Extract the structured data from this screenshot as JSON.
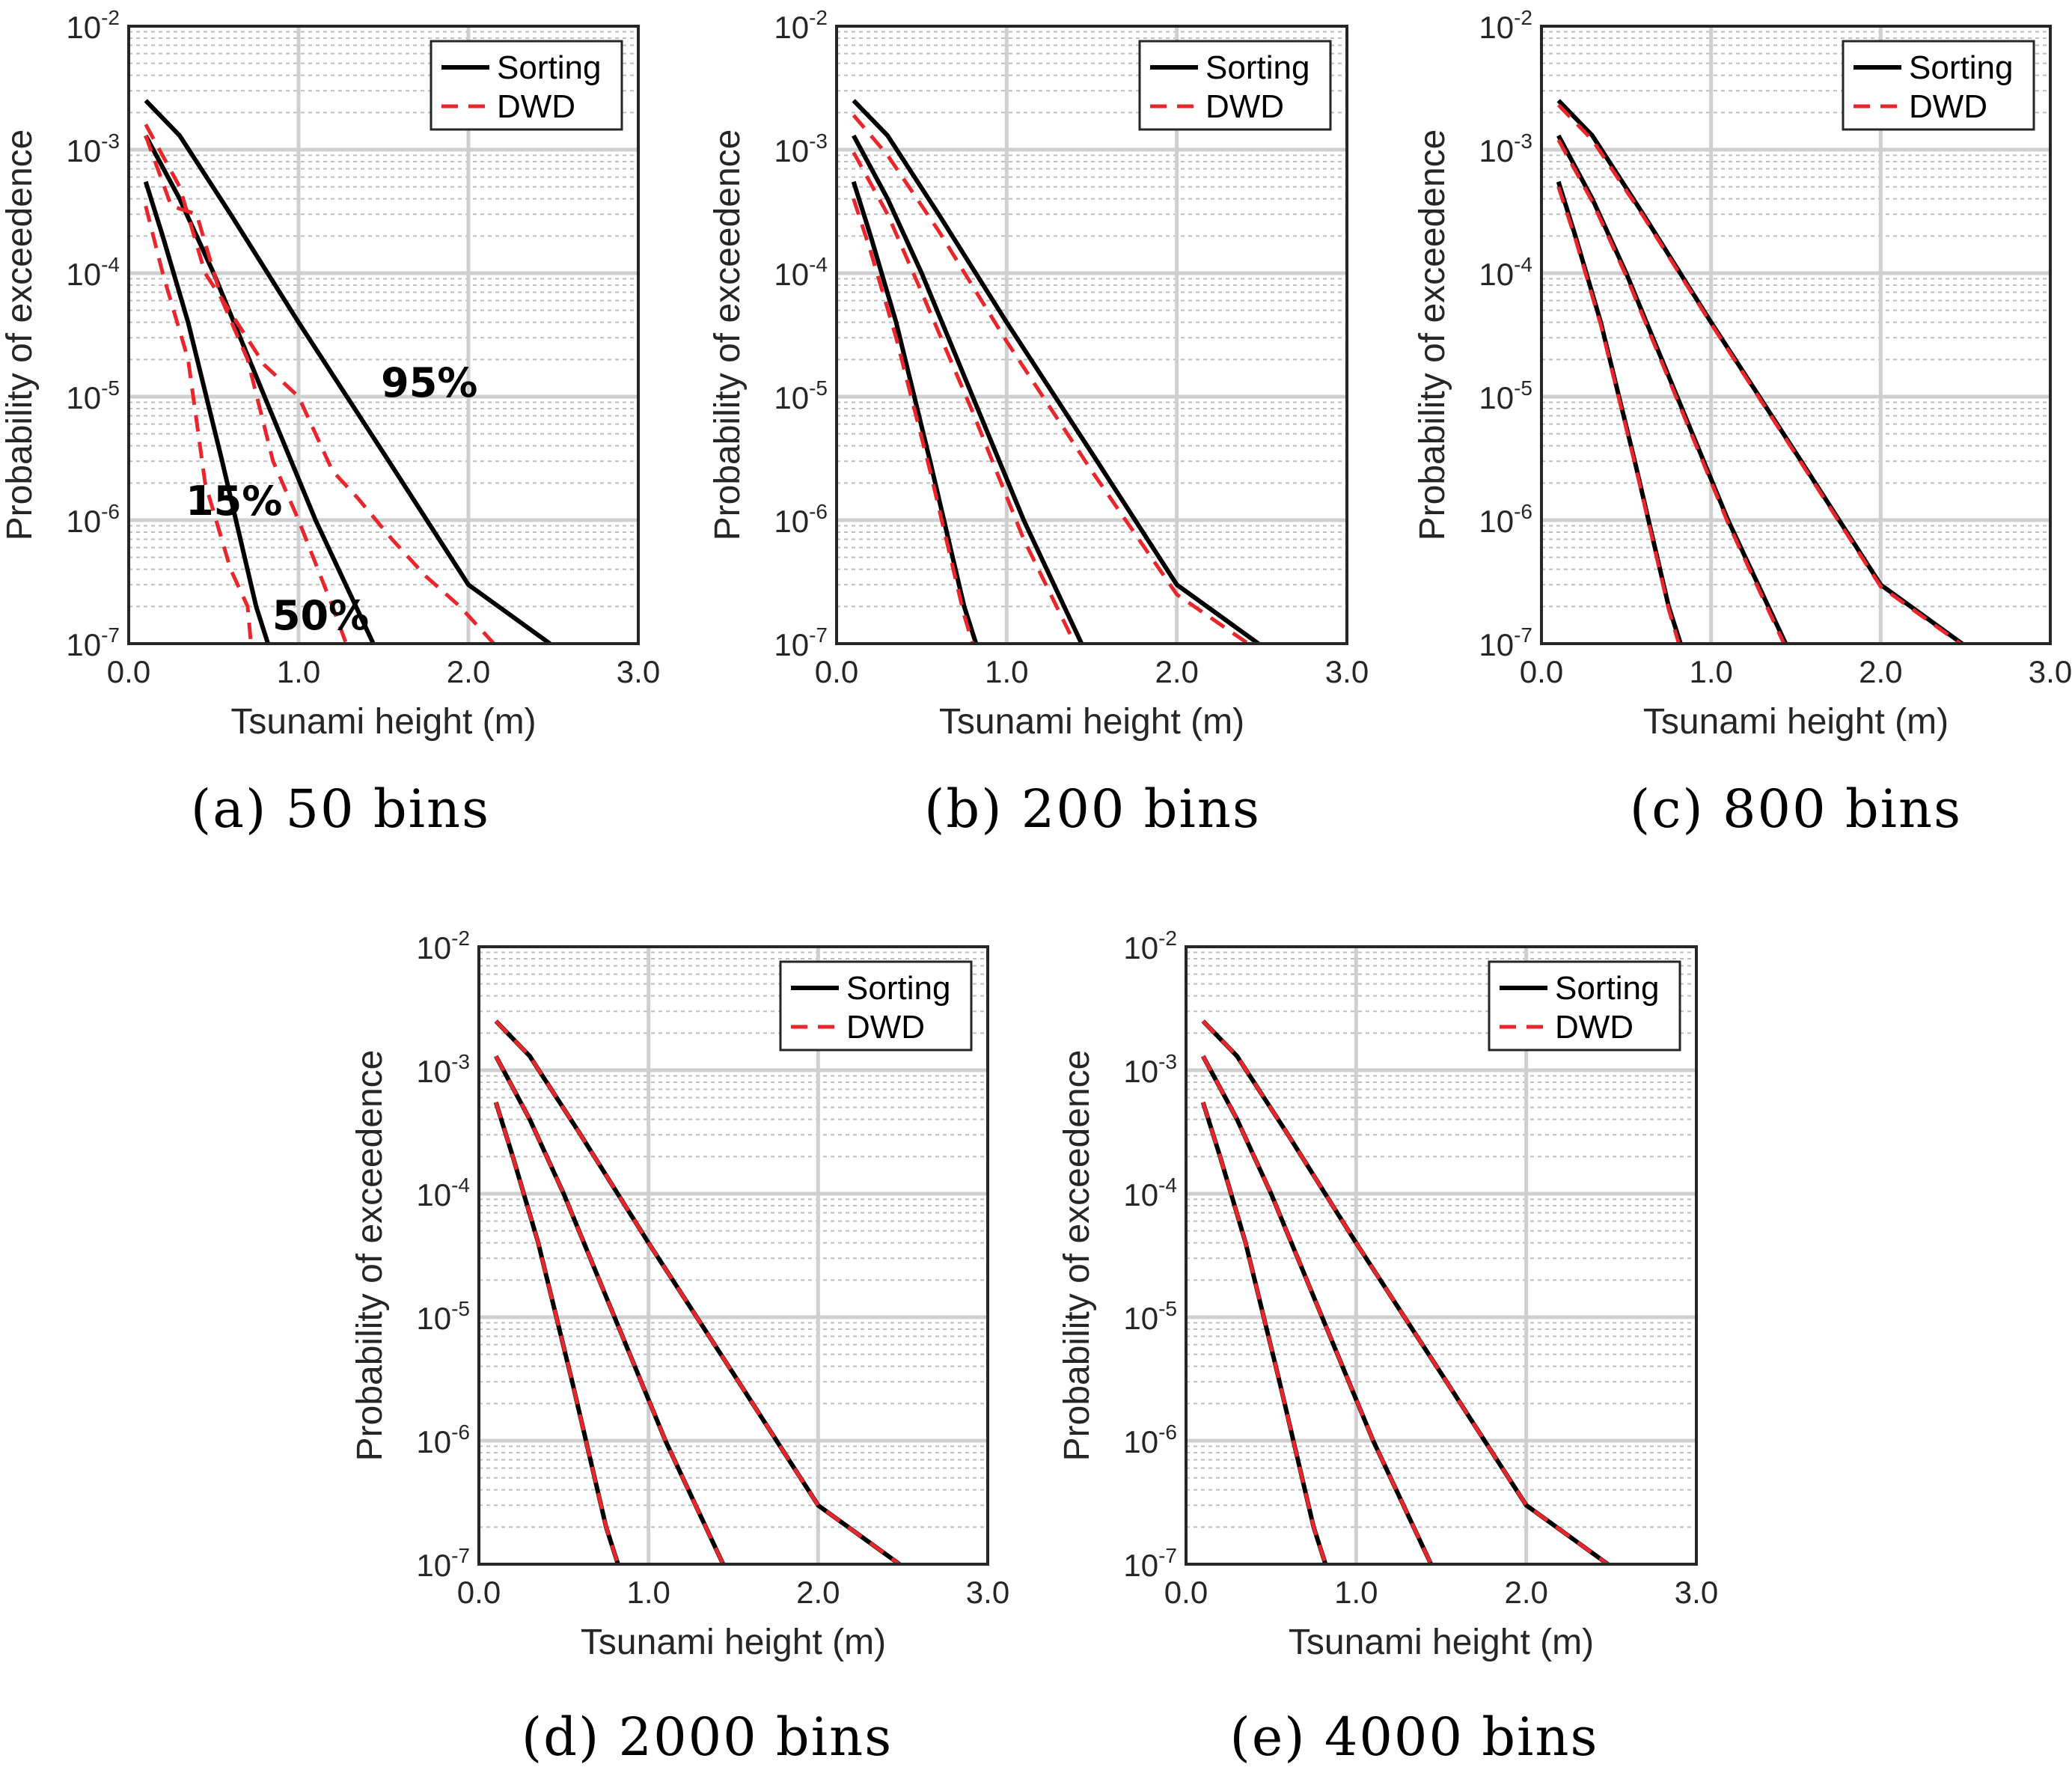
{
  "figure": {
    "type": "multi-panel line chart"
  },
  "chart_data": [
    {
      "type": "line",
      "caption": "(a) 50 bins",
      "xlabel": "Tsunami height (m)",
      "ylabel": "Probability of exceedence",
      "xlim": [
        0,
        3.0
      ],
      "ylim": [
        1e-07,
        0.01
      ],
      "yscale": "log",
      "xticks": [
        "0.0",
        "1.0",
        "2.0",
        "3.0"
      ],
      "yticks": [
        {
          "base": "10",
          "exp": "-2"
        },
        {
          "base": "10",
          "exp": "-3"
        },
        {
          "base": "10",
          "exp": "-4"
        },
        {
          "base": "10",
          "exp": "-5"
        },
        {
          "base": "10",
          "exp": "-6"
        },
        {
          "base": "10",
          "exp": "-7"
        }
      ],
      "legend": {
        "position": "top-right",
        "entries": [
          "Sorting",
          "DWD"
        ]
      },
      "annotations": [
        {
          "text": "95%",
          "x": 1.77,
          "y": 1e-05
        },
        {
          "text": "15%",
          "x": 0.62,
          "y": 1.1e-06
        },
        {
          "text": "50%",
          "x": 1.13,
          "y": 1.3e-07
        }
      ],
      "series": [
        {
          "name": "Sorting",
          "level": "95%",
          "x": [
            0.1,
            0.3,
            0.6,
            1.0,
            1.5,
            2.0,
            2.48
          ],
          "y": [
            0.0025,
            0.0013,
            0.0003,
            4e-05,
            3.5e-06,
            3e-07,
            1e-07
          ]
        },
        {
          "name": "Sorting",
          "level": "50%",
          "x": [
            0.1,
            0.3,
            0.5,
            0.8,
            1.1,
            1.44
          ],
          "y": [
            0.0013,
            0.0004,
            0.0001,
            1e-05,
            1e-06,
            1e-07
          ]
        },
        {
          "name": "Sorting",
          "level": "15%",
          "x": [
            0.1,
            0.2,
            0.35,
            0.55,
            0.75,
            0.82
          ],
          "y": [
            0.00055,
            0.0002,
            4e-05,
            3e-06,
            2e-07,
            1e-07
          ]
        },
        {
          "name": "DWD",
          "level": "95%",
          "x": [
            0.1,
            0.3,
            0.45,
            0.8,
            1.0,
            1.2,
            1.35,
            1.55,
            1.75,
            1.95,
            2.15
          ],
          "y": [
            0.0016,
            0.0005,
            0.0001,
            1.8e-05,
            1e-05,
            2.5e-06,
            1.5e-06,
            7e-07,
            3.5e-07,
            2e-07,
            1e-07
          ]
        },
        {
          "name": "DWD",
          "level": "50%",
          "x": [
            0.1,
            0.25,
            0.4,
            0.55,
            0.7,
            0.85,
            1.0,
            1.2,
            1.28
          ],
          "y": [
            0.0013,
            0.00035,
            0.0003,
            6e-05,
            2e-05,
            3e-06,
            1e-06,
            2e-07,
            1e-07
          ]
        },
        {
          "name": "DWD",
          "level": "15%",
          "x": [
            0.1,
            0.2,
            0.35,
            0.45,
            0.6,
            0.7,
            0.72
          ],
          "y": [
            0.00035,
            0.0001,
            2e-05,
            2e-06,
            4e-07,
            2e-07,
            1e-07
          ]
        }
      ]
    },
    {
      "type": "line",
      "caption": "(b) 200 bins",
      "xlabel": "Tsunami height (m)",
      "ylabel": "Probability of exceedence",
      "xlim": [
        0,
        3.0
      ],
      "ylim": [
        1e-07,
        0.01
      ],
      "yscale": "log",
      "xticks": [
        "0.0",
        "1.0",
        "2.0",
        "3.0"
      ],
      "yticks": [
        {
          "base": "10",
          "exp": "-2"
        },
        {
          "base": "10",
          "exp": "-3"
        },
        {
          "base": "10",
          "exp": "-4"
        },
        {
          "base": "10",
          "exp": "-5"
        },
        {
          "base": "10",
          "exp": "-6"
        },
        {
          "base": "10",
          "exp": "-7"
        }
      ],
      "legend": {
        "position": "top-right",
        "entries": [
          "Sorting",
          "DWD"
        ]
      },
      "series": [
        {
          "name": "Sorting",
          "level": "95%",
          "x": [
            0.1,
            0.3,
            0.6,
            1.0,
            1.5,
            2.0,
            2.48
          ],
          "y": [
            0.0025,
            0.0013,
            0.0003,
            4e-05,
            3.5e-06,
            3e-07,
            1e-07
          ]
        },
        {
          "name": "Sorting",
          "level": "50%",
          "x": [
            0.1,
            0.3,
            0.5,
            0.8,
            1.1,
            1.44
          ],
          "y": [
            0.0013,
            0.0004,
            0.0001,
            1e-05,
            1e-06,
            1e-07
          ]
        },
        {
          "name": "Sorting",
          "level": "15%",
          "x": [
            0.1,
            0.2,
            0.35,
            0.55,
            0.75,
            0.82
          ],
          "y": [
            0.00055,
            0.0002,
            4e-05,
            3e-06,
            2e-07,
            1e-07
          ]
        },
        {
          "name": "DWD",
          "level": "95%",
          "x": [
            0.1,
            0.3,
            0.6,
            1.0,
            1.5,
            2.0,
            2.42
          ],
          "y": [
            0.0019,
            0.0009,
            0.00022,
            2.8e-05,
            2.5e-06,
            2.5e-07,
            1e-07
          ]
        },
        {
          "name": "DWD",
          "level": "50%",
          "x": [
            0.1,
            0.3,
            0.5,
            0.8,
            1.1,
            1.4
          ],
          "y": [
            0.00095,
            0.0003,
            7e-05,
            7.5e-06,
            7e-07,
            1e-07
          ]
        },
        {
          "name": "DWD",
          "level": "15%",
          "x": [
            0.1,
            0.2,
            0.35,
            0.55,
            0.75,
            0.8
          ],
          "y": [
            0.0004,
            0.00015,
            3e-05,
            2.5e-06,
            1.7e-07,
            1e-07
          ]
        }
      ]
    },
    {
      "type": "line",
      "caption": "(c) 800 bins",
      "xlabel": "Tsunami height (m)",
      "ylabel": "Probability of exceedence",
      "xlim": [
        0,
        3.0
      ],
      "ylim": [
        1e-07,
        0.01
      ],
      "yscale": "log",
      "xticks": [
        "0.0",
        "1.0",
        "2.0",
        "3.0"
      ],
      "yticks": [
        {
          "base": "10",
          "exp": "-2"
        },
        {
          "base": "10",
          "exp": "-3"
        },
        {
          "base": "10",
          "exp": "-4"
        },
        {
          "base": "10",
          "exp": "-5"
        },
        {
          "base": "10",
          "exp": "-6"
        },
        {
          "base": "10",
          "exp": "-7"
        }
      ],
      "legend": {
        "position": "top-right",
        "entries": [
          "Sorting",
          "DWD"
        ]
      },
      "series": [
        {
          "name": "Sorting",
          "level": "95%",
          "x": [
            0.1,
            0.3,
            0.6,
            1.0,
            1.5,
            2.0,
            2.48
          ],
          "y": [
            0.0025,
            0.0013,
            0.0003,
            4e-05,
            3.5e-06,
            3e-07,
            1e-07
          ]
        },
        {
          "name": "Sorting",
          "level": "50%",
          "x": [
            0.1,
            0.3,
            0.5,
            0.8,
            1.1,
            1.44
          ],
          "y": [
            0.0013,
            0.0004,
            0.0001,
            1e-05,
            1e-06,
            1e-07
          ]
        },
        {
          "name": "Sorting",
          "level": "15%",
          "x": [
            0.1,
            0.2,
            0.35,
            0.55,
            0.75,
            0.82
          ],
          "y": [
            0.00055,
            0.0002,
            4e-05,
            3e-06,
            2e-07,
            1e-07
          ]
        },
        {
          "name": "DWD",
          "level": "95%",
          "x": [
            0.1,
            0.3,
            0.6,
            1.0,
            1.5,
            2.0,
            2.47
          ],
          "y": [
            0.0023,
            0.0012,
            0.00029,
            3.9e-05,
            3.4e-06,
            2.9e-07,
            1e-07
          ]
        },
        {
          "name": "DWD",
          "level": "50%",
          "x": [
            0.1,
            0.3,
            0.5,
            0.8,
            1.1,
            1.43
          ],
          "y": [
            0.0012,
            0.00038,
            9.5e-05,
            9.5e-06,
            9.5e-07,
            1e-07
          ]
        },
        {
          "name": "DWD",
          "level": "15%",
          "x": [
            0.1,
            0.2,
            0.35,
            0.55,
            0.75,
            0.81
          ],
          "y": [
            0.0005,
            0.00019,
            3.8e-05,
            2.9e-06,
            1.9e-07,
            1e-07
          ]
        }
      ]
    },
    {
      "type": "line",
      "caption": "(d) 2000 bins",
      "xlabel": "Tsunami height (m)",
      "ylabel": "Probability of exceedence",
      "xlim": [
        0,
        3.0
      ],
      "ylim": [
        1e-07,
        0.01
      ],
      "yscale": "log",
      "xticks": [
        "0.0",
        "1.0",
        "2.0",
        "3.0"
      ],
      "yticks": [
        {
          "base": "10",
          "exp": "-2"
        },
        {
          "base": "10",
          "exp": "-3"
        },
        {
          "base": "10",
          "exp": "-4"
        },
        {
          "base": "10",
          "exp": "-5"
        },
        {
          "base": "10",
          "exp": "-6"
        },
        {
          "base": "10",
          "exp": "-7"
        }
      ],
      "legend": {
        "position": "top-right",
        "entries": [
          "Sorting",
          "DWD"
        ]
      },
      "series": [
        {
          "name": "Sorting",
          "level": "95%",
          "x": [
            0.1,
            0.3,
            0.6,
            1.0,
            1.5,
            2.0,
            2.48
          ],
          "y": [
            0.0025,
            0.0013,
            0.0003,
            4e-05,
            3.5e-06,
            3e-07,
            1e-07
          ]
        },
        {
          "name": "Sorting",
          "level": "50%",
          "x": [
            0.1,
            0.3,
            0.5,
            0.8,
            1.1,
            1.44
          ],
          "y": [
            0.0013,
            0.0004,
            0.0001,
            1e-05,
            1e-06,
            1e-07
          ]
        },
        {
          "name": "Sorting",
          "level": "15%",
          "x": [
            0.1,
            0.2,
            0.35,
            0.55,
            0.75,
            0.82
          ],
          "y": [
            0.00055,
            0.0002,
            4e-05,
            3e-06,
            2e-07,
            1e-07
          ]
        },
        {
          "name": "DWD",
          "level": "95%",
          "x": [
            0.1,
            0.3,
            0.6,
            1.0,
            1.5,
            2.0,
            2.48
          ],
          "y": [
            0.0025,
            0.0013,
            0.0003,
            4e-05,
            3.5e-06,
            3e-07,
            1e-07
          ]
        },
        {
          "name": "DWD",
          "level": "50%",
          "x": [
            0.1,
            0.3,
            0.5,
            0.8,
            1.1,
            1.44
          ],
          "y": [
            0.0013,
            0.0004,
            0.0001,
            1e-05,
            1e-06,
            1e-07
          ]
        },
        {
          "name": "DWD",
          "level": "15%",
          "x": [
            0.1,
            0.2,
            0.35,
            0.55,
            0.75,
            0.82
          ],
          "y": [
            0.00055,
            0.0002,
            4e-05,
            3e-06,
            2e-07,
            1e-07
          ]
        }
      ]
    },
    {
      "type": "line",
      "caption": "(e) 4000 bins",
      "xlabel": "Tsunami height (m)",
      "ylabel": "Probability of exceedence",
      "xlim": [
        0,
        3.0
      ],
      "ylim": [
        1e-07,
        0.01
      ],
      "yscale": "log",
      "xticks": [
        "0.0",
        "1.0",
        "2.0",
        "3.0"
      ],
      "yticks": [
        {
          "base": "10",
          "exp": "-2"
        },
        {
          "base": "10",
          "exp": "-3"
        },
        {
          "base": "10",
          "exp": "-4"
        },
        {
          "base": "10",
          "exp": "-5"
        },
        {
          "base": "10",
          "exp": "-6"
        },
        {
          "base": "10",
          "exp": "-7"
        }
      ],
      "legend": {
        "position": "top-right",
        "entries": [
          "Sorting",
          "DWD"
        ]
      },
      "series": [
        {
          "name": "Sorting",
          "level": "95%",
          "x": [
            0.1,
            0.3,
            0.6,
            1.0,
            1.5,
            2.0,
            2.48
          ],
          "y": [
            0.0025,
            0.0013,
            0.0003,
            4e-05,
            3.5e-06,
            3e-07,
            1e-07
          ]
        },
        {
          "name": "Sorting",
          "level": "50%",
          "x": [
            0.1,
            0.3,
            0.5,
            0.8,
            1.1,
            1.44
          ],
          "y": [
            0.0013,
            0.0004,
            0.0001,
            1e-05,
            1e-06,
            1e-07
          ]
        },
        {
          "name": "Sorting",
          "level": "15%",
          "x": [
            0.1,
            0.2,
            0.35,
            0.55,
            0.75,
            0.82
          ],
          "y": [
            0.00055,
            0.0002,
            4e-05,
            3e-06,
            2e-07,
            1e-07
          ]
        },
        {
          "name": "DWD",
          "level": "95%",
          "x": [
            0.1,
            0.3,
            0.6,
            1.0,
            1.5,
            2.0,
            2.48
          ],
          "y": [
            0.0025,
            0.0013,
            0.0003,
            4e-05,
            3.5e-06,
            3e-07,
            1e-07
          ]
        },
        {
          "name": "DWD",
          "level": "50%",
          "x": [
            0.1,
            0.3,
            0.5,
            0.8,
            1.1,
            1.44
          ],
          "y": [
            0.0013,
            0.0004,
            0.0001,
            1e-05,
            1e-06,
            1e-07
          ]
        },
        {
          "name": "DWD",
          "level": "15%",
          "x": [
            0.1,
            0.2,
            0.35,
            0.55,
            0.75,
            0.82
          ],
          "y": [
            0.00055,
            0.0002,
            4e-05,
            3e-06,
            2e-07,
            1e-07
          ]
        }
      ]
    }
  ],
  "colors": {
    "sorting": "#000000",
    "dwd": "#e8262b",
    "grid_major": "#cfcfcf",
    "grid_minor": "#bdbdbd",
    "axes": "#262626"
  }
}
